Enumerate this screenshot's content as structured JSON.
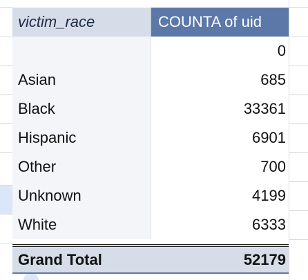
{
  "pivot": {
    "header": {
      "row_field": "victim_race",
      "value_field": "COUNTA of uid"
    },
    "rows": [
      {
        "label": "",
        "value": "0"
      },
      {
        "label": "Asian",
        "value": "685"
      },
      {
        "label": "Black",
        "value": "33361"
      },
      {
        "label": "Hispanic",
        "value": "6901"
      },
      {
        "label": "Other",
        "value": "700"
      },
      {
        "label": "Unknown",
        "value": "4199"
      },
      {
        "label": "White",
        "value": "6333"
      }
    ],
    "grand_total": {
      "label": "Grand Total",
      "value": "52179"
    }
  },
  "colors": {
    "header_value_bg": "#5b78a9",
    "header_label_bg": "#d6dde9",
    "row_label_bg": "#f3f5f9",
    "selection": "#dbe6f8"
  }
}
